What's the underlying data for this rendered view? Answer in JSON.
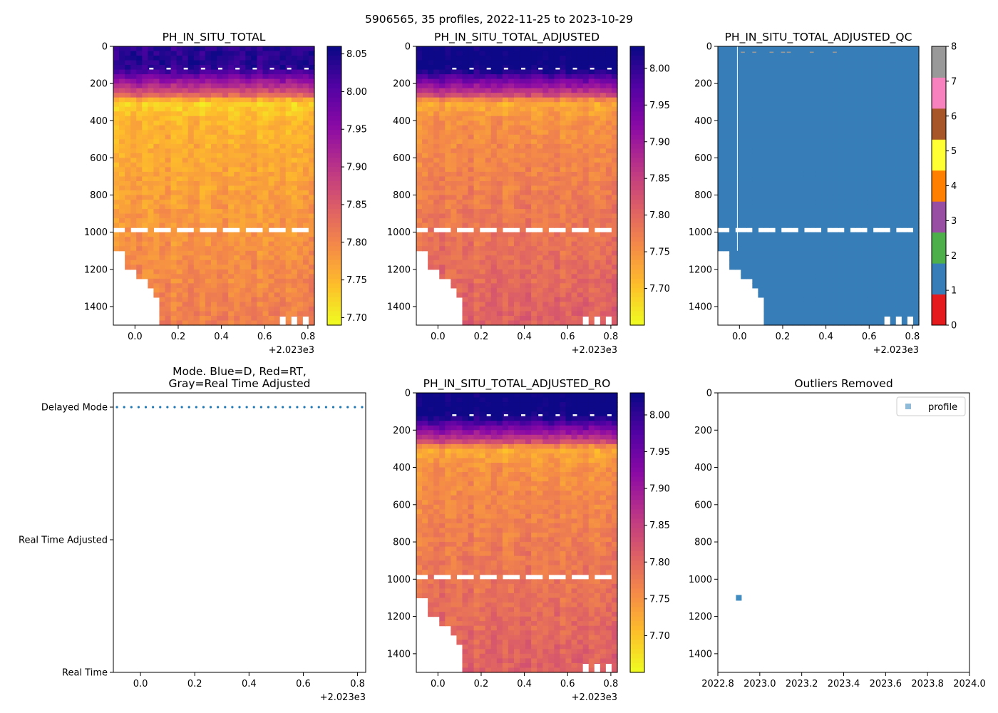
{
  "figure_title": "5906565, 35 profiles, 2022-11-25 to 2023-10-29",
  "chart_data": [
    {
      "id": "raw",
      "type": "heatmap",
      "title": "PH_IN_SITU_TOTAL",
      "x_ticks": [
        "0.0",
        "0.2",
        "0.4",
        "0.6",
        "0.8"
      ],
      "x_offset_label": "+2.023e3",
      "xlim": [
        -0.1,
        0.83
      ],
      "y_ticks": [
        "0",
        "200",
        "400",
        "600",
        "800",
        "1000",
        "1200",
        "1400"
      ],
      "ylim": [
        1500,
        0
      ],
      "ylabel": "",
      "colormap": "plasma_r",
      "colorbar_ticks": [
        "7.70",
        "7.75",
        "7.80",
        "7.85",
        "7.90",
        "7.95",
        "8.00",
        "8.05"
      ],
      "clim": [
        7.69,
        8.06
      ]
    },
    {
      "id": "adj",
      "type": "heatmap",
      "title": "PH_IN_SITU_TOTAL_ADJUSTED",
      "x_ticks": [
        "0.0",
        "0.2",
        "0.4",
        "0.6",
        "0.8"
      ],
      "x_offset_label": "+2.023e3",
      "xlim": [
        -0.1,
        0.83
      ],
      "y_ticks": [
        "0",
        "200",
        "400",
        "600",
        "800",
        "1000",
        "1200",
        "1400"
      ],
      "ylim": [
        1500,
        0
      ],
      "colormap": "plasma_r",
      "colorbar_ticks": [
        "7.70",
        "7.75",
        "7.80",
        "7.85",
        "7.90",
        "7.95",
        "8.00"
      ],
      "clim": [
        7.65,
        8.03
      ]
    },
    {
      "id": "qc",
      "type": "heatmap",
      "title": "PH_IN_SITU_TOTAL_ADJUSTED_QC",
      "x_ticks": [
        "0.0",
        "0.2",
        "0.4",
        "0.6",
        "0.8"
      ],
      "x_offset_label": "+2.023e3",
      "xlim": [
        -0.1,
        0.83
      ],
      "y_ticks": [
        "0",
        "200",
        "400",
        "600",
        "800",
        "1000",
        "1200",
        "1400"
      ],
      "ylim": [
        1500,
        0
      ],
      "colorbar_ticks": [
        "0",
        "1",
        "2",
        "3",
        "4",
        "5",
        "6",
        "7",
        "8"
      ],
      "qc_colors": [
        "#e41a1c",
        "#377eb8",
        "#4daf4a",
        "#984ea3",
        "#ff7f00",
        "#ffff33",
        "#a65628",
        "#f781bf",
        "#999999"
      ],
      "dominant_flag": 1
    },
    {
      "id": "mode",
      "type": "scatter",
      "title": "Mode. Blue=D, Red=RT,",
      "title2": "Gray=Real Time Adjusted",
      "x_ticks": [
        "0.0",
        "0.2",
        "0.4",
        "0.6",
        "0.8"
      ],
      "x_offset_label": "+2.023e3",
      "xlim": [
        -0.1,
        0.83
      ],
      "y_categories": [
        "Real Time",
        "Real Time Adjusted",
        "Delayed Mode"
      ],
      "series": [
        {
          "name": "Delayed Mode",
          "category": "Delayed Mode",
          "color": "#1f77b4",
          "count": 35
        }
      ]
    },
    {
      "id": "ro",
      "type": "heatmap",
      "title": "PH_IN_SITU_TOTAL_ADJUSTED_RO",
      "x_ticks": [
        "0.0",
        "0.2",
        "0.4",
        "0.6",
        "0.8"
      ],
      "x_offset_label": "+2.023e3",
      "xlim": [
        -0.1,
        0.83
      ],
      "y_ticks": [
        "0",
        "200",
        "400",
        "600",
        "800",
        "1000",
        "1200",
        "1400"
      ],
      "ylim": [
        1500,
        0
      ],
      "colormap": "plasma_r",
      "colorbar_ticks": [
        "7.70",
        "7.75",
        "7.80",
        "7.85",
        "7.90",
        "7.95",
        "8.00"
      ],
      "clim": [
        7.65,
        8.03
      ]
    },
    {
      "id": "outliers",
      "type": "scatter",
      "title": "Outliers Removed",
      "x_ticks": [
        "2022.8",
        "2023.0",
        "2023.2",
        "2023.4",
        "2023.6",
        "2023.8",
        "2024.0"
      ],
      "xlim": [
        2022.8,
        2024.0
      ],
      "y_ticks": [
        "0",
        "200",
        "400",
        "600",
        "800",
        "1000",
        "1200",
        "1400"
      ],
      "ylim": [
        1500,
        0
      ],
      "legend": [
        "profile"
      ],
      "legend_position": "top-right",
      "points": [
        {
          "x": 2022.9,
          "y": 1100
        }
      ],
      "color": "#1f77b4"
    }
  ]
}
